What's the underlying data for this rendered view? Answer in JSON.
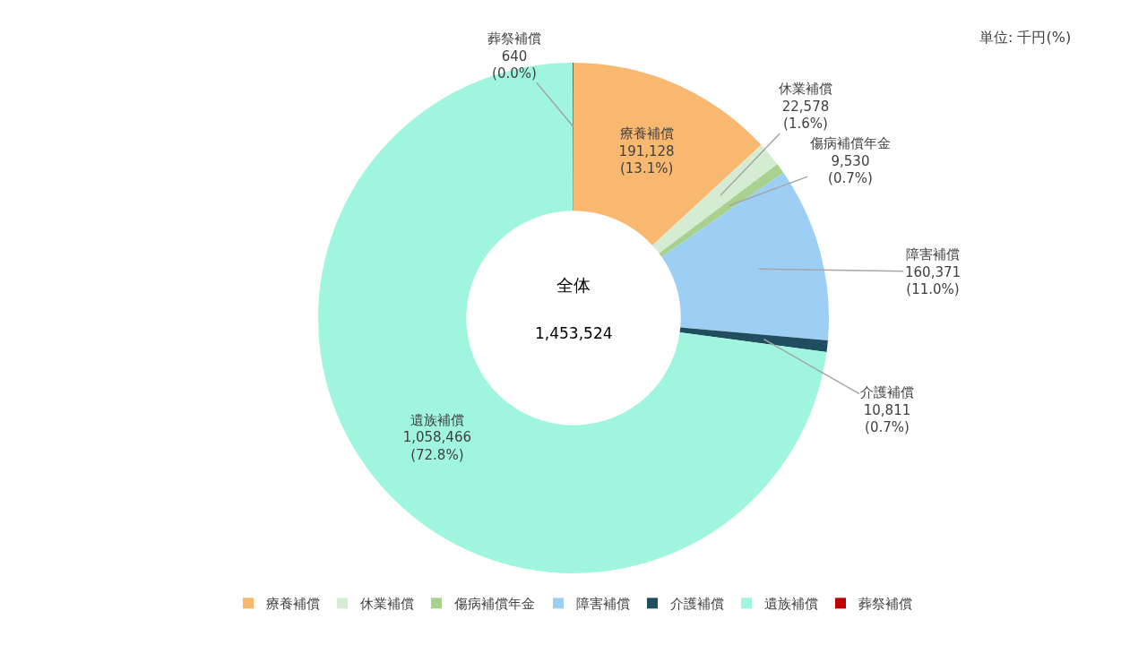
{
  "chart_data": {
    "type": "donut",
    "categories": [
      "療養補償",
      "休業補償",
      "傷病補償年金",
      "障害補償",
      "介護補償",
      "遺族補償",
      "葬祭補償"
    ],
    "values": [
      191128,
      22578,
      9530,
      160371,
      10811,
      1058466,
      640
    ],
    "colors": [
      "#f9b870",
      "#d6ecd2",
      "#a9d18e",
      "#9dcff5",
      "#1f4e5f",
      "#9ff5de",
      "#c00000"
    ],
    "value_labels": [
      "191,128\n(13.1%)",
      "22,578\n(1.6%)",
      "9,530\n(0.7%)",
      "160,371\n(11.0%)",
      "10,811\n(0.7%)",
      "1,058,466\n(72.8%)",
      "640\n(0.0%)"
    ],
    "annotations": [
      "全体",
      "1,453,524",
      "単位: 千円(%)"
    ],
    "legend": "bottom"
  }
}
